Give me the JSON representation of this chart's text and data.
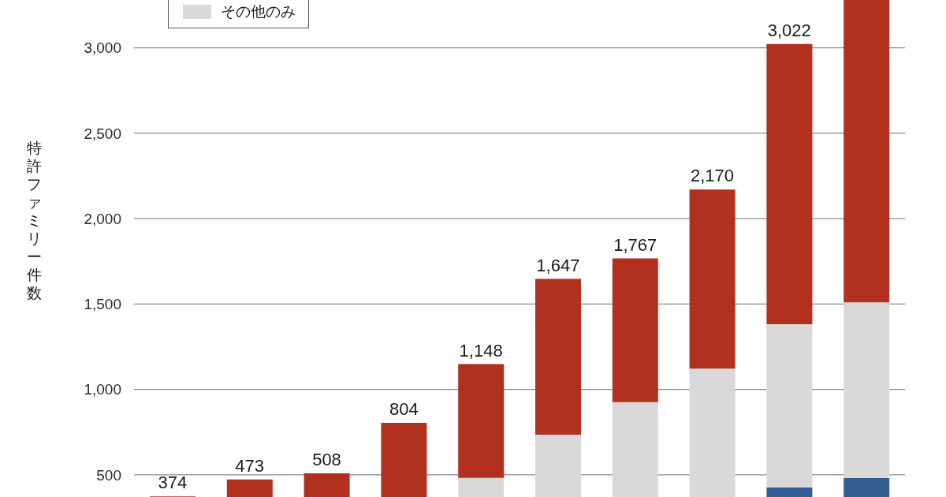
{
  "chart_data": {
    "type": "bar",
    "stacked": true,
    "ylabel": "特許ファミリー件数",
    "categories": [
      null,
      null,
      null,
      null,
      null,
      null,
      null,
      null,
      null,
      null
    ],
    "series": [
      {
        "color": "#335e91",
        "values": [
          null,
          null,
          null,
          null,
          null,
          null,
          null,
          null,
          427,
          482
        ]
      },
      {
        "name": "その他のみ",
        "color": "#d9d9da",
        "values": [
          null,
          null,
          null,
          null,
          482,
          735,
          926,
          1122,
          955,
          1028
        ]
      },
      {
        "color": "#b2301f",
        "values": [
          374,
          473,
          508,
          804,
          666,
          912,
          841,
          1048,
          1640,
          1770
        ]
      }
    ],
    "totals": [
      "374",
      "473",
      "508",
      "804",
      "1,148",
      "1,647",
      "1,767",
      "2,170",
      "3,022",
      null
    ],
    "ylim": [
      370,
      3280
    ],
    "yticks": [
      500,
      {
        "value": 1000,
        "label": "1,000"
      },
      {
        "value": 1500,
        "label": "1,500"
      },
      {
        "value": 2000,
        "label": "2,000"
      },
      {
        "value": 2500,
        "label": "2,500"
      },
      {
        "value": 3000,
        "label": "3,000"
      }
    ],
    "grid": "y",
    "legend": "top left",
    "tick_labels": "y"
  }
}
